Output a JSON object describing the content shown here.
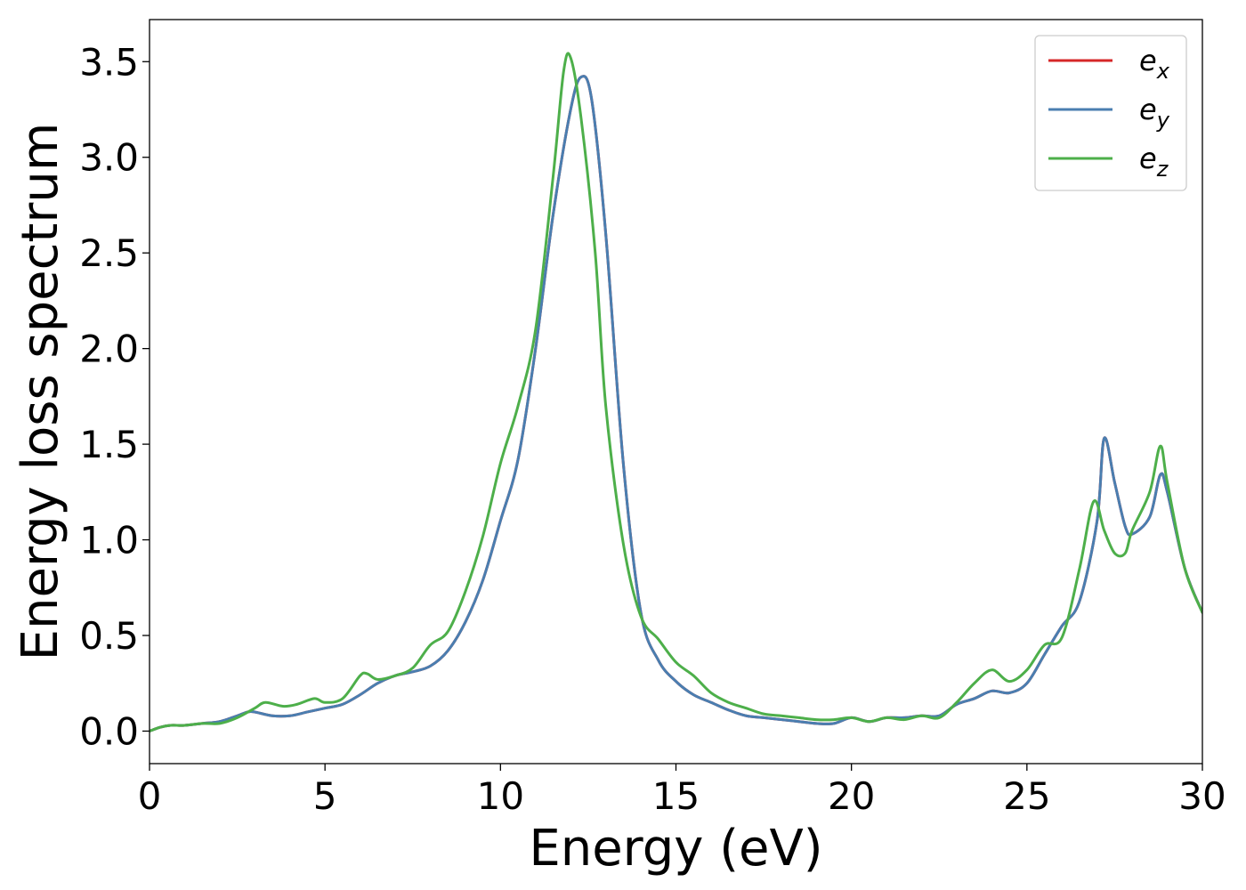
{
  "chart_data": {
    "type": "line",
    "title": "",
    "xlabel": "Energy (eV)",
    "ylabel": "Energy loss spectrum",
    "xlim": [
      0,
      30
    ],
    "ylim": [
      -0.17,
      3.72
    ],
    "xticks": [
      0,
      5,
      10,
      15,
      20,
      25,
      30
    ],
    "xtick_labels": [
      "0",
      "5",
      "10",
      "15",
      "20",
      "25",
      "30"
    ],
    "yticks": [
      0.0,
      0.5,
      1.0,
      1.5,
      2.0,
      2.5,
      3.0,
      3.5
    ],
    "ytick_labels": [
      "0.0",
      "0.5",
      "1.0",
      "1.5",
      "2.0",
      "2.5",
      "3.0",
      "3.5"
    ],
    "grid": false,
    "legend_position": "top-right",
    "series": [
      {
        "name": "e_x",
        "legend_base": "e",
        "legend_sub": "x",
        "color": "#d62728",
        "x": [
          0,
          0.3,
          0.6,
          1.0,
          1.5,
          2.0,
          2.5,
          2.8,
          3.0,
          3.5,
          4.0,
          4.5,
          5.0,
          5.5,
          6.0,
          6.5,
          7.0,
          7.5,
          8.0,
          8.5,
          9.0,
          9.5,
          10.0,
          10.5,
          11.0,
          11.5,
          12.0,
          12.3,
          12.6,
          13.0,
          13.5,
          14.0,
          14.5,
          15.0,
          15.5,
          16.0,
          16.5,
          17.0,
          17.5,
          18.0,
          18.5,
          19.0,
          19.5,
          20.0,
          20.5,
          21.0,
          21.5,
          22.0,
          22.5,
          23.0,
          23.5,
          24.0,
          24.5,
          25.0,
          25.5,
          26.0,
          26.5,
          27.0,
          27.2,
          27.5,
          27.8,
          28.0,
          28.5,
          28.8,
          29.0,
          29.5,
          30.0
        ],
        "y": [
          0.0,
          0.02,
          0.03,
          0.03,
          0.04,
          0.05,
          0.08,
          0.1,
          0.1,
          0.08,
          0.08,
          0.1,
          0.12,
          0.14,
          0.19,
          0.25,
          0.29,
          0.31,
          0.34,
          0.42,
          0.57,
          0.79,
          1.1,
          1.42,
          2.0,
          2.7,
          3.25,
          3.42,
          3.3,
          2.6,
          1.4,
          0.62,
          0.37,
          0.26,
          0.19,
          0.15,
          0.11,
          0.08,
          0.07,
          0.06,
          0.05,
          0.04,
          0.04,
          0.07,
          0.05,
          0.07,
          0.07,
          0.08,
          0.08,
          0.14,
          0.17,
          0.21,
          0.2,
          0.25,
          0.4,
          0.55,
          0.68,
          1.1,
          1.53,
          1.3,
          1.07,
          1.03,
          1.12,
          1.34,
          1.25,
          0.85,
          0.62
        ]
      },
      {
        "name": "e_y",
        "legend_base": "e",
        "legend_sub": "y",
        "color": "#4a7eb0",
        "x": [
          0,
          0.3,
          0.6,
          1.0,
          1.5,
          2.0,
          2.5,
          2.8,
          3.0,
          3.5,
          4.0,
          4.5,
          5.0,
          5.5,
          6.0,
          6.5,
          7.0,
          7.5,
          8.0,
          8.5,
          9.0,
          9.5,
          10.0,
          10.5,
          11.0,
          11.5,
          12.0,
          12.3,
          12.6,
          13.0,
          13.5,
          14.0,
          14.5,
          15.0,
          15.5,
          16.0,
          16.5,
          17.0,
          17.5,
          18.0,
          18.5,
          19.0,
          19.5,
          20.0,
          20.5,
          21.0,
          21.5,
          22.0,
          22.5,
          23.0,
          23.5,
          24.0,
          24.5,
          25.0,
          25.5,
          26.0,
          26.5,
          27.0,
          27.2,
          27.5,
          27.8,
          28.0,
          28.5,
          28.8,
          29.0,
          29.5,
          30.0
        ],
        "y": [
          0.0,
          0.02,
          0.03,
          0.03,
          0.04,
          0.05,
          0.08,
          0.1,
          0.1,
          0.08,
          0.08,
          0.1,
          0.12,
          0.14,
          0.19,
          0.25,
          0.29,
          0.31,
          0.34,
          0.42,
          0.57,
          0.79,
          1.1,
          1.42,
          2.0,
          2.7,
          3.25,
          3.42,
          3.3,
          2.6,
          1.4,
          0.62,
          0.37,
          0.26,
          0.19,
          0.15,
          0.11,
          0.08,
          0.07,
          0.06,
          0.05,
          0.04,
          0.04,
          0.07,
          0.05,
          0.07,
          0.07,
          0.08,
          0.08,
          0.14,
          0.17,
          0.21,
          0.2,
          0.25,
          0.4,
          0.55,
          0.68,
          1.1,
          1.53,
          1.3,
          1.07,
          1.03,
          1.12,
          1.34,
          1.25,
          0.85,
          0.62
        ]
      },
      {
        "name": "e_z",
        "legend_base": "e",
        "legend_sub": "z",
        "color": "#4daf4a",
        "x": [
          0,
          0.3,
          0.6,
          1.0,
          1.5,
          2.0,
          2.5,
          3.0,
          3.3,
          3.8,
          4.2,
          4.7,
          5.0,
          5.5,
          6.0,
          6.2,
          6.5,
          7.0,
          7.5,
          8.0,
          8.5,
          9.0,
          9.5,
          10.0,
          10.5,
          11.0,
          11.5,
          11.8,
          12.0,
          12.3,
          12.7,
          13.0,
          13.5,
          14.0,
          14.5,
          15.0,
          15.5,
          16.0,
          16.5,
          17.0,
          17.5,
          18.0,
          18.5,
          19.0,
          19.5,
          20.0,
          20.5,
          21.0,
          21.5,
          22.0,
          22.5,
          23.0,
          23.5,
          24.0,
          24.5,
          25.0,
          25.5,
          26.0,
          26.5,
          26.9,
          27.2,
          27.5,
          27.8,
          28.0,
          28.5,
          28.8,
          29.0,
          29.5,
          30.0
        ],
        "y": [
          0.0,
          0.02,
          0.03,
          0.03,
          0.04,
          0.04,
          0.07,
          0.12,
          0.15,
          0.13,
          0.14,
          0.17,
          0.15,
          0.17,
          0.29,
          0.3,
          0.27,
          0.29,
          0.33,
          0.45,
          0.52,
          0.73,
          1.02,
          1.4,
          1.7,
          2.1,
          2.9,
          3.45,
          3.52,
          3.2,
          2.5,
          1.7,
          0.98,
          0.6,
          0.48,
          0.36,
          0.29,
          0.2,
          0.15,
          0.12,
          0.09,
          0.08,
          0.07,
          0.06,
          0.06,
          0.07,
          0.05,
          0.07,
          0.06,
          0.08,
          0.07,
          0.15,
          0.25,
          0.32,
          0.26,
          0.32,
          0.45,
          0.49,
          0.85,
          1.2,
          1.05,
          0.93,
          0.93,
          1.05,
          1.25,
          1.49,
          1.3,
          0.85,
          0.62
        ]
      }
    ]
  }
}
